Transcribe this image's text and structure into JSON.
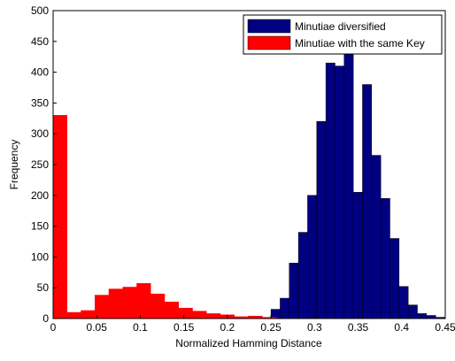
{
  "chart_data": {
    "type": "histogram",
    "xlabel": "Normalized Hamming Distance",
    "ylabel": "Frequency",
    "xlim": [
      0,
      0.45
    ],
    "ylim": [
      0,
      500
    ],
    "xticks": [
      0,
      0.05,
      0.1,
      0.15,
      0.2,
      0.25,
      0.3,
      0.35,
      0.4,
      0.45
    ],
    "yticks": [
      0,
      50,
      100,
      150,
      200,
      250,
      300,
      350,
      400,
      450,
      500
    ],
    "legend": "upper right",
    "series": [
      {
        "name": "Minutiae diversified",
        "color": "#000080",
        "bins": [
          0.25,
          0.2605,
          0.271,
          0.2815,
          0.292,
          0.3025,
          0.313,
          0.3235,
          0.334,
          0.3445,
          0.355,
          0.3655,
          0.376,
          0.3865,
          0.397,
          0.4075,
          0.418,
          0.4285,
          0.439,
          0.4495
        ],
        "values": [
          15,
          33,
          90,
          140,
          200,
          320,
          415,
          410,
          430,
          205,
          380,
          265,
          195,
          130,
          52,
          22,
          8,
          5,
          2
        ]
      },
      {
        "name": "Minutiae with the same Key",
        "color": "#ff0000",
        "bins": [
          0,
          0.016,
          0.032,
          0.048,
          0.064,
          0.08,
          0.096,
          0.112,
          0.128,
          0.144,
          0.16,
          0.176,
          0.192,
          0.208,
          0.224,
          0.24,
          0.256
        ],
        "values": [
          330,
          10,
          13,
          38,
          48,
          51,
          57,
          40,
          27,
          17,
          12,
          8,
          6,
          3,
          4,
          2
        ]
      }
    ]
  }
}
